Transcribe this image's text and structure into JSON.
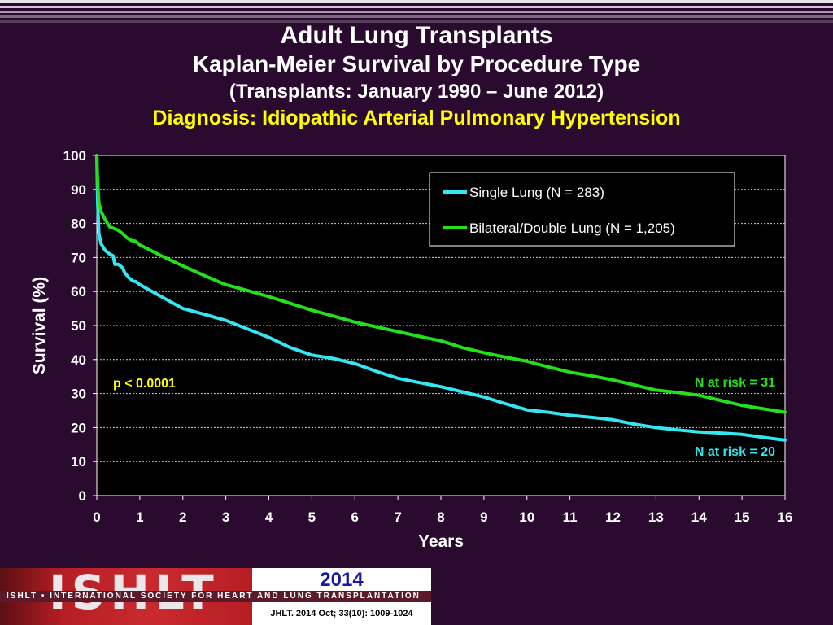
{
  "header": {
    "title": "Adult Lung Transplants",
    "subtitle": "Kaplan-Meier Survival by Procedure Type",
    "period": "(Transplants: January 1990 – June 2012)",
    "diagnosis": "Diagnosis: Idiopathic Arterial Pulmonary Hypertension"
  },
  "footer": {
    "logo_word": "ISHLT",
    "society": "ISHLT • INTERNATIONAL SOCIETY FOR HEART AND LUNG TRANSPLANTATION",
    "year": "2014",
    "citation": "JHLT. 2014 Oct; 33(10): 1009-1024"
  },
  "colors": {
    "background": "#2a0a2e",
    "single_lung": "#33e6f0",
    "bilateral_lung": "#22e01a",
    "pvalue": "#ffff00"
  },
  "chart_data": {
    "type": "line",
    "xlabel": "Years",
    "ylabel": "Survival (%)",
    "xlim": [
      0,
      16
    ],
    "ylim": [
      0,
      100
    ],
    "x_ticks": [
      "0",
      "1",
      "2",
      "3",
      "4",
      "5",
      "6",
      "7",
      "8",
      "9",
      "10",
      "11",
      "12",
      "13",
      "14",
      "15",
      "16"
    ],
    "y_ticks": [
      "0",
      "10",
      "20",
      "30",
      "40",
      "50",
      "60",
      "70",
      "80",
      "90",
      "100"
    ],
    "grid": "horizontal dashed",
    "legend_position": "top-right",
    "series": [
      {
        "name": "Single Lung (N = 283)",
        "color": "#33e6f0",
        "points": [
          [
            0,
            100
          ],
          [
            0.02,
            86
          ],
          [
            0.05,
            77
          ],
          [
            0.1,
            74
          ],
          [
            0.2,
            72
          ],
          [
            0.3,
            71
          ],
          [
            0.38,
            70.5
          ],
          [
            0.42,
            68
          ],
          [
            0.5,
            68
          ],
          [
            0.6,
            67
          ],
          [
            0.65,
            65.5
          ],
          [
            0.75,
            64
          ],
          [
            0.8,
            63.5
          ],
          [
            0.85,
            63
          ],
          [
            0.9,
            63
          ],
          [
            1,
            62
          ],
          [
            1.5,
            58.5
          ],
          [
            2,
            55
          ],
          [
            2.5,
            53.3
          ],
          [
            3,
            51.5
          ],
          [
            3.5,
            49
          ],
          [
            4,
            46.5
          ],
          [
            4.5,
            43.5
          ],
          [
            5,
            41.3
          ],
          [
            5.5,
            40.3
          ],
          [
            6,
            38.8
          ],
          [
            6.5,
            36.5
          ],
          [
            7,
            34.5
          ],
          [
            7.5,
            33.2
          ],
          [
            8,
            32
          ],
          [
            8.5,
            30.5
          ],
          [
            9,
            29
          ],
          [
            9.5,
            27
          ],
          [
            10,
            25.2
          ],
          [
            10.5,
            24.5
          ],
          [
            11,
            23.6
          ],
          [
            11.5,
            23
          ],
          [
            12,
            22.3
          ],
          [
            12.5,
            21
          ],
          [
            13,
            20
          ],
          [
            13.5,
            19.3
          ],
          [
            14,
            18.7
          ],
          [
            14.5,
            18.4
          ],
          [
            15,
            18
          ],
          [
            15.5,
            17.1
          ],
          [
            16,
            16.3
          ]
        ]
      },
      {
        "name": "Bilateral/Double Lung (N = 1,205)",
        "color": "#22e01a",
        "points": [
          [
            0,
            100
          ],
          [
            0.02,
            92
          ],
          [
            0.05,
            86
          ],
          [
            0.1,
            83.5
          ],
          [
            0.2,
            81
          ],
          [
            0.3,
            79
          ],
          [
            0.4,
            78.5
          ],
          [
            0.5,
            78
          ],
          [
            0.6,
            77
          ],
          [
            0.7,
            75.8
          ],
          [
            0.8,
            75
          ],
          [
            0.9,
            74.8
          ],
          [
            1,
            73.7
          ],
          [
            1.5,
            70.5
          ],
          [
            2,
            67.5
          ],
          [
            2.5,
            64.7
          ],
          [
            3,
            62
          ],
          [
            3.5,
            60.3
          ],
          [
            4,
            58.5
          ],
          [
            4.5,
            56.5
          ],
          [
            5,
            54.5
          ],
          [
            5.5,
            52.8
          ],
          [
            6,
            51
          ],
          [
            6.5,
            49.6
          ],
          [
            7,
            48.2
          ],
          [
            7.5,
            46.8
          ],
          [
            8,
            45.5
          ],
          [
            8.5,
            43.5
          ],
          [
            9,
            42
          ],
          [
            9.5,
            40.7
          ],
          [
            10,
            39.5
          ],
          [
            10.5,
            37.8
          ],
          [
            11,
            36.3
          ],
          [
            11.5,
            35.2
          ],
          [
            12,
            34
          ],
          [
            12.5,
            32.5
          ],
          [
            13,
            31
          ],
          [
            13.5,
            30.3
          ],
          [
            14,
            29.5
          ],
          [
            14.5,
            28
          ],
          [
            15,
            26.5
          ],
          [
            15.5,
            25.5
          ],
          [
            16,
            24.5
          ]
        ]
      }
    ],
    "annotations": {
      "p_value": "p < 0.0001",
      "bilateral_at_risk": "N at risk = 31",
      "single_at_risk": "N at risk = 20"
    }
  }
}
